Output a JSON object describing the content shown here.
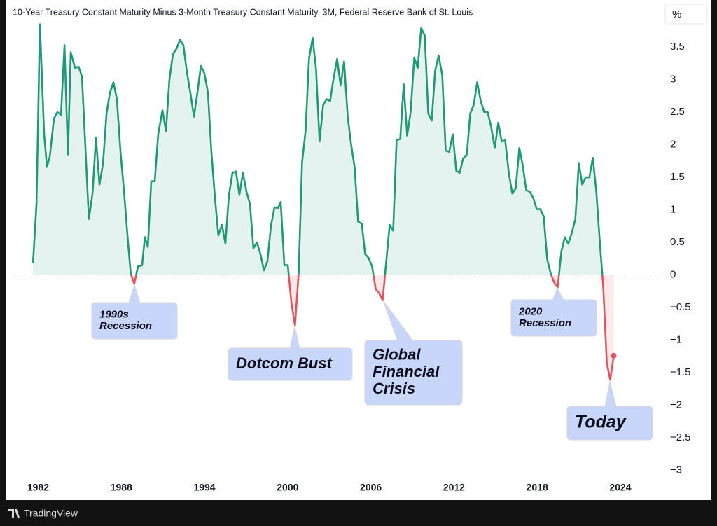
{
  "chart_data": {
    "type": "line",
    "title": "10-Year Treasury Constant Maturity Minus 3-Month Treasury Constant Maturity, 3M, Federal Reserve Bank of St. Louis",
    "ylabel": "%",
    "color": "#1f9a77",
    "negative_color": "#e3545c",
    "zero_line": true,
    "grid": false,
    "xlim": [
      1980.26,
      2026.98
    ],
    "xticks": [
      1982,
      1988,
      1994,
      2000,
      2006,
      2012,
      2018,
      2024
    ],
    "ylim": [
      -3.2,
      3.9
    ],
    "yticks": [
      {
        "value": -3,
        "label": "−3"
      },
      {
        "value": -2.5,
        "label": "−2.5"
      },
      {
        "value": -2,
        "label": "−2"
      },
      {
        "value": -1.5,
        "label": "−1.5"
      },
      {
        "value": -1,
        "label": "−1"
      },
      {
        "value": -0.5,
        "label": "−0.5"
      },
      0,
      0.5,
      1,
      1.5,
      2,
      2.5,
      3,
      3.5
    ],
    "x": [
      1981.63,
      1981.88,
      1982.13,
      1982.43,
      1982.64,
      1982.84,
      1983.14,
      1983.39,
      1983.65,
      1983.9,
      1984.15,
      1984.35,
      1984.66,
      1984.91,
      1985.16,
      1985.41,
      1985.66,
      1985.92,
      1986.17,
      1986.42,
      1986.68,
      1986.93,
      1987.18,
      1987.43,
      1987.68,
      1987.94,
      1988.19,
      1988.44,
      1988.68,
      1988.93,
      1989.2,
      1989.5,
      1989.7,
      1989.91,
      1990.16,
      1990.41,
      1990.66,
      1990.97,
      1991.22,
      1991.47,
      1991.72,
      1991.97,
      1992.23,
      1992.48,
      1992.73,
      1992.98,
      1993.24,
      1993.49,
      1993.74,
      1993.99,
      1994.25,
      1994.5,
      1994.75,
      1995.0,
      1995.26,
      1995.51,
      1995.76,
      1996.02,
      1996.27,
      1996.52,
      1996.77,
      1997.03,
      1997.28,
      1997.53,
      1997.78,
      1998.04,
      1998.29,
      1998.54,
      1998.79,
      1999.05,
      1999.3,
      1999.5,
      1999.76,
      2000.01,
      2000.26,
      2000.53,
      2000.79,
      2001.04,
      2001.29,
      2001.54,
      2001.8,
      2002.05,
      2002.3,
      2002.56,
      2002.81,
      2003.06,
      2003.31,
      2003.57,
      2003.82,
      2004.07,
      2004.33,
      2004.58,
      2004.83,
      2005.08,
      2005.34,
      2005.59,
      2005.84,
      2006.09,
      2006.35,
      2006.6,
      2006.85,
      2007.11,
      2007.36,
      2007.61,
      2007.86,
      2008.12,
      2008.37,
      2008.62,
      2008.87,
      2009.13,
      2009.38,
      2009.63,
      2009.89,
      2010.14,
      2010.39,
      2010.64,
      2010.89,
      2011.15,
      2011.4,
      2011.65,
      2011.91,
      2012.16,
      2012.41,
      2012.66,
      2012.92,
      2013.17,
      2013.42,
      2013.67,
      2013.93,
      2014.18,
      2014.43,
      2014.68,
      2014.94,
      2015.19,
      2015.44,
      2015.69,
      2015.95,
      2016.2,
      2016.45,
      2016.71,
      2016.96,
      2017.21,
      2017.46,
      2017.72,
      2017.97,
      2018.22,
      2018.47,
      2018.72,
      2018.98,
      2019.23,
      2019.48,
      2019.74,
      2019.99,
      2020.24,
      2020.49,
      2020.75,
      2021.0,
      2021.25,
      2021.5,
      2021.76,
      2022.01,
      2022.26,
      2022.52,
      2022.77,
      2023.02,
      2023.27,
      2023.52
    ],
    "values": [
      0.18,
      1.09,
      3.85,
      2.16,
      1.66,
      1.82,
      2.4,
      2.5,
      2.46,
      3.53,
      1.84,
      3.42,
      3.18,
      3.2,
      3.05,
      1.95,
      0.86,
      1.25,
      2.11,
      1.39,
      1.71,
      2.48,
      2.8,
      2.96,
      2.7,
      1.89,
      1.3,
      0.61,
      0.02,
      -0.14,
      0.13,
      0.15,
      0.58,
      0.43,
      1.44,
      1.44,
      2.16,
      2.53,
      2.21,
      3.0,
      3.39,
      3.47,
      3.61,
      3.53,
      3.12,
      2.8,
      2.43,
      2.8,
      3.21,
      3.1,
      2.8,
      1.89,
      1.2,
      0.61,
      0.77,
      0.48,
      1.22,
      1.57,
      1.59,
      1.23,
      1.57,
      1.28,
      1.09,
      0.41,
      0.5,
      0.32,
      0.07,
      0.21,
      0.75,
      1.04,
      1.03,
      1.12,
      0.15,
      0.15,
      -0.41,
      -0.78,
      0.02,
      1.73,
      2.21,
      3.32,
      3.64,
      3.16,
      2.05,
      2.61,
      2.7,
      2.67,
      3.02,
      3.32,
      2.91,
      3.28,
      2.43,
      2.0,
      1.65,
      0.82,
      0.79,
      0.32,
      0.26,
      0.13,
      -0.22,
      -0.28,
      -0.39,
      0.21,
      0.77,
      0.68,
      2.07,
      2.09,
      2.93,
      2.14,
      2.5,
      3.34,
      3.18,
      3.79,
      3.68,
      2.48,
      2.37,
      3.14,
      3.37,
      3.07,
      1.91,
      1.89,
      2.16,
      1.6,
      1.57,
      1.79,
      1.84,
      2.48,
      2.61,
      2.96,
      2.67,
      2.5,
      2.5,
      2.27,
      1.95,
      2.34,
      2.05,
      2.07,
      1.57,
      1.25,
      1.33,
      1.95,
      1.68,
      1.3,
      1.28,
      1.18,
      1.01,
      1.01,
      0.9,
      0.24,
      0.02,
      -0.12,
      -0.19,
      0.36,
      0.58,
      0.48,
      0.64,
      0.86,
      1.71,
      1.39,
      1.5,
      1.5,
      1.8,
      1.3,
      0.5,
      -0.19,
      -1.35,
      -1.61,
      -1.24
    ],
    "annotations": [
      {
        "text": [
          "1990s",
          "Recession"
        ]
      },
      {
        "text": [
          "Dotcom Bust"
        ]
      },
      {
        "text": [
          "Global",
          "Financial",
          "Crisis"
        ]
      },
      {
        "text": [
          "2020",
          "Recession"
        ]
      },
      {
        "text": [
          "Today"
        ]
      }
    ]
  },
  "footer_brand": "TradingView"
}
